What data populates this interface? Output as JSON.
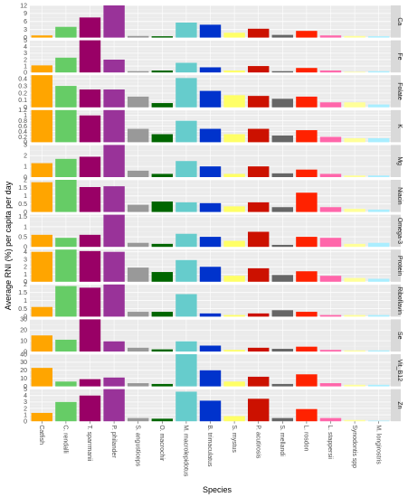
{
  "chart_data": {
    "type": "bar",
    "layout": "faceted-by-nutrient",
    "ylabel": "Average RNI (%) per capita per day",
    "xlabel": "Species",
    "categories": [
      "Catfish",
      "C. rendalli",
      "T. sparrmanii",
      "P. philander",
      "S. angusticeps",
      "O. macrochir",
      "M. macrolepidotus",
      "B. trimaculatus",
      "S. mystus",
      "P. acutirosis",
      "S. mellandi",
      "L. rosdon",
      "L. stappersii",
      "Synodontis spp",
      "M. longirostris"
    ],
    "category_colors": [
      "#ffa500",
      "#66cc66",
      "#990066",
      "#993399",
      "#999999",
      "#006600",
      "#66cccc",
      "#0033cc",
      "#ffff66",
      "#cc1100",
      "#666666",
      "#ff2200",
      "#ff66aa",
      "#ffff99",
      "#aaeeff"
    ],
    "grid": true,
    "legend": "none",
    "series": [
      {
        "name": "Ca",
        "ylim": [
          0,
          12
        ],
        "yticks": [
          0,
          3,
          6,
          9,
          12
        ],
        "values": [
          0.8,
          4.0,
          7.5,
          12.0,
          0.6,
          0.5,
          5.6,
          4.8,
          1.8,
          3.3,
          1.0,
          2.5,
          0.8,
          0.6,
          0.5
        ]
      },
      {
        "name": "Fe",
        "ylim": [
          0,
          5
        ],
        "yticks": [
          0,
          1,
          2,
          3,
          4,
          5
        ],
        "values": [
          1.1,
          2.3,
          5.0,
          2.0,
          0.2,
          0.3,
          1.5,
          0.8,
          0.3,
          1.0,
          0.2,
          0.7,
          0.3,
          0.1,
          0.2
        ]
      },
      {
        "name": "Folate",
        "ylim": [
          0,
          0.45
        ],
        "yticks": [
          0,
          0.1,
          0.2,
          0.3,
          0.4
        ],
        "values": [
          0.45,
          0.3,
          0.25,
          0.25,
          0.15,
          0.06,
          0.41,
          0.23,
          0.17,
          0.16,
          0.12,
          0.15,
          0.07,
          0.07,
          0.04
        ]
      },
      {
        "name": "K",
        "ylim": [
          0,
          1.2
        ],
        "yticks": [
          0,
          0.2,
          0.4,
          0.6,
          0.8,
          1.0,
          1.2
        ],
        "values": [
          1.2,
          1.2,
          1.0,
          1.2,
          0.5,
          0.3,
          0.8,
          0.5,
          0.3,
          0.5,
          0.25,
          0.45,
          0.2,
          0.15,
          0.15
        ]
      },
      {
        "name": "Mg",
        "ylim": [
          0,
          3.0
        ],
        "yticks": [
          0,
          1,
          2,
          3
        ],
        "values": [
          1.3,
          1.7,
          1.9,
          3.0,
          0.6,
          0.3,
          1.5,
          1.0,
          0.3,
          1.0,
          0.35,
          0.7,
          0.3,
          0.15,
          0.15
        ]
      },
      {
        "name": "Niacin",
        "ylim": [
          0,
          2.0
        ],
        "yticks": [
          0,
          0.5,
          1.0,
          1.5,
          2.0
        ],
        "values": [
          1.85,
          2.0,
          1.55,
          1.6,
          0.45,
          0.65,
          0.6,
          0.55,
          0.35,
          0.6,
          0.3,
          1.2,
          0.3,
          0.2,
          0.15
        ]
      },
      {
        "name": "Omega-3",
        "ylim": [
          0,
          1.6
        ],
        "yticks": [
          0,
          0.5,
          1.0,
          1.5
        ],
        "values": [
          0.6,
          0.45,
          0.6,
          1.6,
          0.2,
          0.15,
          0.65,
          0.5,
          0.3,
          0.75,
          0.1,
          0.5,
          0.45,
          0.15,
          0.2
        ]
      },
      {
        "name": "Protein",
        "ylim": [
          0,
          4.3
        ],
        "yticks": [
          0,
          1,
          2,
          3,
          4
        ],
        "values": [
          4.0,
          4.3,
          4.1,
          4.0,
          1.9,
          1.3,
          2.9,
          2.0,
          0.8,
          1.8,
          0.9,
          1.4,
          0.8,
          0.5,
          0.4
        ]
      },
      {
        "name": "Riboflavin",
        "ylim": [
          0,
          2.0
        ],
        "yticks": [
          0,
          0.5,
          1.0,
          1.5,
          2.0
        ],
        "values": [
          0.6,
          1.9,
          1.8,
          2.0,
          0.3,
          0.3,
          1.4,
          0.2,
          0.1,
          0.2,
          0.4,
          0.3,
          0.1,
          0.1,
          0.1
        ]
      },
      {
        "name": "Se",
        "ylim": [
          0,
          30
        ],
        "yticks": [
          0,
          10,
          20,
          30
        ],
        "values": [
          15.0,
          11.0,
          30.0,
          9.5,
          3.5,
          2.0,
          9.5,
          5.5,
          1.5,
          3.5,
          2.5,
          4.5,
          1.5,
          1.0,
          1.0
        ]
      },
      {
        "name": "Vit_B12",
        "ylim": [
          0,
          40
        ],
        "yticks": [
          0,
          10,
          20,
          30,
          40
        ],
        "values": [
          23.0,
          6.0,
          9.0,
          11.0,
          4.0,
          3.0,
          40.0,
          20.0,
          6.0,
          12.0,
          3.0,
          15.0,
          4.0,
          2.0,
          2.0
        ]
      },
      {
        "name": "Zn",
        "ylim": [
          0,
          5
        ],
        "yticks": [
          0,
          1,
          2,
          3,
          4,
          5
        ],
        "values": [
          1.3,
          3.0,
          4.0,
          5.0,
          0.5,
          0.4,
          4.6,
          3.2,
          0.8,
          3.5,
          0.5,
          1.9,
          0.5,
          0.2,
          0.1
        ]
      }
    ]
  }
}
